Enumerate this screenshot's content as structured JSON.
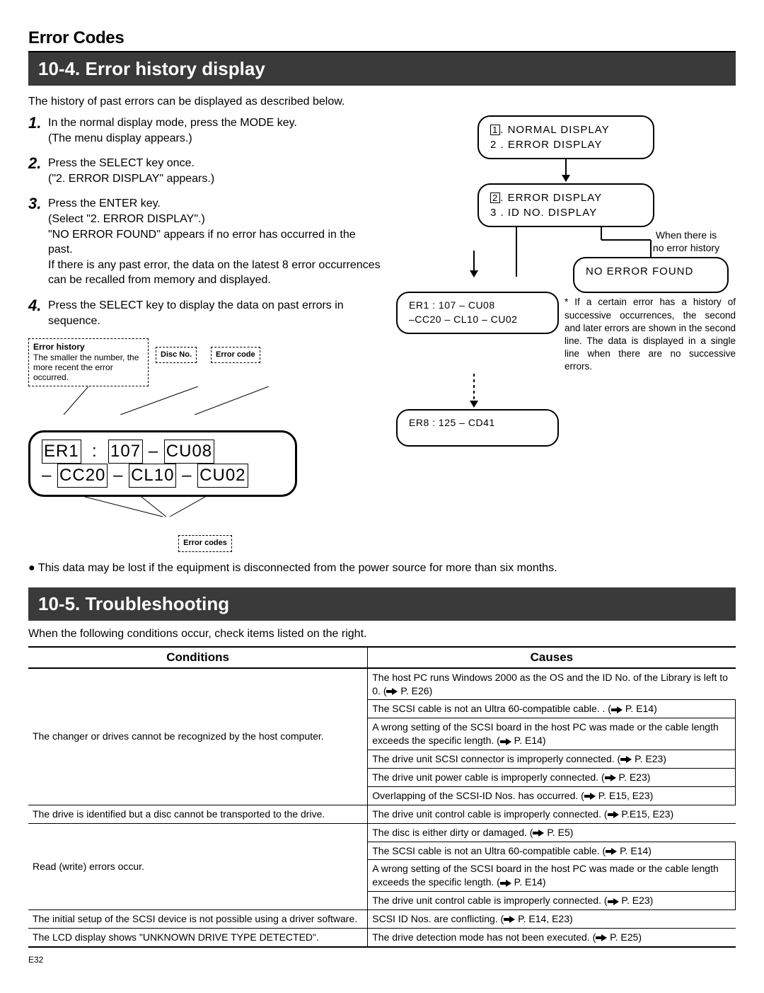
{
  "header": {
    "title": "Error Codes"
  },
  "section104": {
    "title": "10-4. Error history display",
    "intro": "The history of past errors can be displayed as described below.",
    "steps": [
      {
        "n": "1.",
        "lines": [
          "In the normal display mode, press the MODE key.",
          "(The menu display appears.)"
        ]
      },
      {
        "n": "2.",
        "lines": [
          "Press the SELECT key once.",
          "(\"2. ERROR DISPLAY\" appears.)"
        ]
      },
      {
        "n": "3.",
        "lines": [
          "Press the ENTER key.",
          "(Select \"2. ERROR DISPLAY\".)",
          "\"NO ERROR FOUND\" appears if no error has occurred in the past.",
          "If there is any past error, the data on the latest 8 error occurrences can be recalled from memory and displayed."
        ]
      },
      {
        "n": "4.",
        "lines": [
          "Press the SELECT key to display the data on past errors in sequence."
        ]
      }
    ],
    "callouts": {
      "history_title": "Error history",
      "history_text": "The smaller the number, the more recent the error occurred.",
      "disc_label": "Disc No.",
      "code_label": "Error code",
      "error_codes_label": "Error codes"
    },
    "lcd": {
      "line1": {
        "er": "ER1",
        "sep": ":",
        "disc": "107",
        "dash": "–",
        "code": "CU08"
      },
      "line2": {
        "dash": "–",
        "a": "CC20",
        "b": "CL10",
        "c": "CU02"
      }
    },
    "flow": {
      "box1": {
        "n": "1",
        "rest": ". NORMAL  DISPLAY",
        "line2": "2 . ERROR  DISPLAY"
      },
      "box2": {
        "n": "2",
        "rest": ". ERROR  DISPLAY",
        "line2": "3 . ID  NO.  DISPLAY"
      },
      "no_history_note": "When there is\nno error history",
      "no_error": "NO ERROR FOUND",
      "box3a": "ER1 : 107 – CU08",
      "box3b": "–CC20 – CL10 – CU02",
      "box4": "ER8 : 125 – CD41",
      "asterisk": "* If a certain error has a history of successive occurrences, the second and later errors are shown in the second line. The data is displayed in a single line when there are no successive errors."
    },
    "footnote": "This data may be lost if the equipment is disconnected from the power source for more than six months."
  },
  "section105": {
    "title": "10-5. Troubleshooting",
    "intro": "When the following conditions occur, check items listed on the right.",
    "headers": {
      "cond": "Conditions",
      "cause": "Causes"
    },
    "rows": [
      {
        "cond": "The changer or drives cannot be recognized by the host computer.",
        "causes": [
          "The host PC runs Windows 2000 as the OS and the ID No. of the Library is left to 0. (➡ P. E26)",
          "The SCSI cable is not an Ultra 60-compatible cable. . (➡ P. E14)",
          "A wrong setting of the SCSI board in the host PC was made or the cable length exceeds the specific length.  (➡ P. E14)",
          "The drive unit SCSI connector is improperly connected. (➡ P. E23)",
          "The drive unit power cable is improperly connected. (➡ P. E23)",
          "Overlapping of the SCSI-ID Nos. has occurred. (➡ P. E15, E23)"
        ]
      },
      {
        "cond": "The drive is identified but a disc cannot be transported to the drive.",
        "causes": [
          "The drive unit control cable is improperly connected. (➡ P.E15, E23)"
        ]
      },
      {
        "cond": "Read (write) errors occur.",
        "causes": [
          "The disc is either dirty or damaged. (➡ P. E5)",
          "The SCSI cable is not an Ultra 60-compatible cable. (➡ P. E14)",
          "A wrong setting of the SCSI board in the host PC was made or the cable length exceeds the specific length. (➡ P. E14)",
          "The drive unit control cable is improperly connected. (➡ P. E23)"
        ]
      },
      {
        "cond": "The initial setup of the SCSI device is not possible using a driver software.",
        "causes": [
          "SCSI ID Nos. are conflicting. (➡ P. E14, E23)"
        ]
      },
      {
        "cond": "The LCD display shows \"UNKNOWN DRIVE TYPE DETECTED\".",
        "causes": [
          "The drive detection mode has not been executed. (➡ P. E25)"
        ]
      }
    ]
  },
  "page": "E32"
}
